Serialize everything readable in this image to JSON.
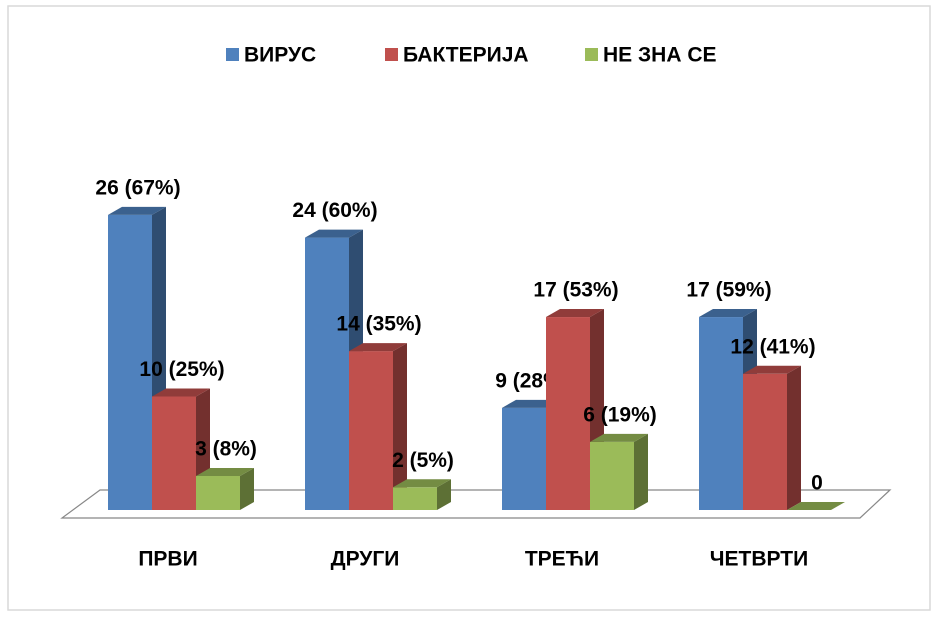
{
  "chart_data": {
    "type": "bar3d",
    "categories": [
      "ПРВИ",
      "ДРУГИ",
      "ТРЕЋИ",
      "ЧЕТВРТИ"
    ],
    "series": [
      {
        "name": "ВИРУС",
        "color": "#4f81bd",
        "values": [
          26,
          24,
          9,
          17
        ],
        "value_labels": [
          "26 (67%)",
          "24 (60%)",
          "9 (28%)",
          "17 (59%)"
        ]
      },
      {
        "name": "БАКТЕРИЈА",
        "color": "#c0504d",
        "values": [
          10,
          14,
          17,
          12
        ],
        "value_labels": [
          "10 (25%)",
          "14 (35%)",
          "17 (53%)",
          "12 (41%)"
        ]
      },
      {
        "name": "НЕ ЗНА СЕ",
        "color": "#9bbb59",
        "values": [
          3,
          2,
          6,
          0
        ],
        "value_labels": [
          "3 (8%)",
          "2 (5%)",
          "6 (19%)",
          "0"
        ]
      }
    ],
    "legend": "top"
  }
}
